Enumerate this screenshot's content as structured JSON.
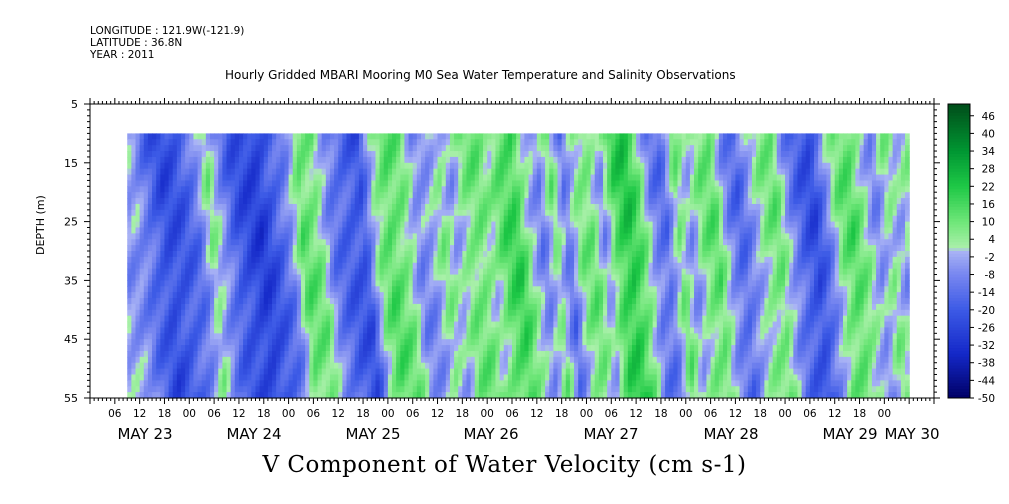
{
  "header": {
    "longitude_line": "LONGITUDE : 121.9W(-121.9)",
    "latitude_line": "LATITUDE : 36.8N",
    "year_line": "YEAR : 2011",
    "title": "Hourly Gridded MBARI Mooring M0 Sea Water Temperature and Salinity Observations"
  },
  "chart_data": {
    "type": "heatmap",
    "title": "Hourly Gridded MBARI Mooring M0 Sea Water Temperature and Salinity Observations",
    "xlabel": "V Component of Water Velocity (cm s-1)",
    "ylabel": "DEPTH (m)",
    "y_axis": {
      "range": [
        5,
        55
      ],
      "inverted": true,
      "ticks": [
        5,
        15,
        25,
        35,
        45,
        55
      ],
      "data_depth_range": [
        10,
        55
      ]
    },
    "x_axis": {
      "hour_tick_labels": [
        "06",
        "12",
        "18",
        "00",
        "06",
        "12",
        "18",
        "00",
        "06",
        "12",
        "18",
        "00",
        "06",
        "12",
        "18",
        "00",
        "06",
        "12",
        "18",
        "00",
        "06",
        "12",
        "18",
        "00",
        "06",
        "12",
        "18",
        "00",
        "06",
        "12",
        "18",
        "00"
      ],
      "day_labels": [
        "MAY 23",
        "MAY 24",
        "MAY 25",
        "MAY 26",
        "MAY 27",
        "MAY 28",
        "MAY 29",
        "MAY 30"
      ],
      "data_time_range_hours_from_may23_00": [
        9,
        198
      ]
    },
    "colorbar": {
      "labels": [
        "46",
        "40",
        "34",
        "28",
        "22",
        "16",
        "10",
        "4",
        "-2",
        "-8",
        "-14",
        "-20",
        "-26",
        "-32",
        "-38",
        "-44",
        "-50"
      ],
      "range": [
        -50,
        50
      ],
      "low_color": "#000066",
      "mid_low_color": "#a0a8f0",
      "mid_high_color": "#a8f0a8",
      "high_color": "#004d1a"
    },
    "bands": [
      {
        "t": 9,
        "v": -5
      },
      {
        "t": 12,
        "v": -14
      },
      {
        "t": 16,
        "v": -24
      },
      {
        "t": 20,
        "v": -20
      },
      {
        "t": 24,
        "v": -12
      },
      {
        "t": 27,
        "v": 6
      },
      {
        "t": 30,
        "v": -8
      },
      {
        "t": 33,
        "v": -20
      },
      {
        "t": 36,
        "v": -24
      },
      {
        "t": 39,
        "v": -28
      },
      {
        "t": 43,
        "v": -18
      },
      {
        "t": 46,
        "v": -10
      },
      {
        "t": 49,
        "v": 12
      },
      {
        "t": 53,
        "v": 8
      },
      {
        "t": 56,
        "v": -10
      },
      {
        "t": 60,
        "v": -18
      },
      {
        "t": 64,
        "v": -22
      },
      {
        "t": 67,
        "v": 4
      },
      {
        "t": 70,
        "v": 14
      },
      {
        "t": 74,
        "v": 8
      },
      {
        "t": 77,
        "v": -8
      },
      {
        "t": 80,
        "v": -6
      },
      {
        "t": 83,
        "v": 6
      },
      {
        "t": 86,
        "v": -4
      },
      {
        "t": 89,
        "v": 8
      },
      {
        "t": 92,
        "v": 10
      },
      {
        "t": 95,
        "v": 2
      },
      {
        "t": 98,
        "v": 14
      },
      {
        "t": 101,
        "v": 18
      },
      {
        "t": 104,
        "v": 2
      },
      {
        "t": 107,
        "v": -10
      },
      {
        "t": 110,
        "v": 8
      },
      {
        "t": 113,
        "v": -14
      },
      {
        "t": 116,
        "v": 6
      },
      {
        "t": 119,
        "v": 10
      },
      {
        "t": 122,
        "v": -6
      },
      {
        "t": 125,
        "v": 16
      },
      {
        "t": 128,
        "v": 22
      },
      {
        "t": 131,
        "v": 10
      },
      {
        "t": 134,
        "v": -10
      },
      {
        "t": 137,
        "v": -14
      },
      {
        "t": 140,
        "v": 10
      },
      {
        "t": 143,
        "v": -6
      },
      {
        "t": 146,
        "v": 8
      },
      {
        "t": 149,
        "v": 12
      },
      {
        "t": 152,
        "v": -8
      },
      {
        "t": 155,
        "v": -16
      },
      {
        "t": 158,
        "v": -4
      },
      {
        "t": 161,
        "v": 6
      },
      {
        "t": 164,
        "v": 10
      },
      {
        "t": 167,
        "v": -8
      },
      {
        "t": 170,
        "v": -18
      },
      {
        "t": 173,
        "v": -24
      },
      {
        "t": 176,
        "v": -10
      },
      {
        "t": 179,
        "v": 8
      },
      {
        "t": 182,
        "v": 14
      },
      {
        "t": 185,
        "v": 4
      },
      {
        "t": 188,
        "v": -8
      },
      {
        "t": 191,
        "v": 6
      },
      {
        "t": 194,
        "v": -4
      },
      {
        "t": 198,
        "v": 8
      }
    ]
  }
}
